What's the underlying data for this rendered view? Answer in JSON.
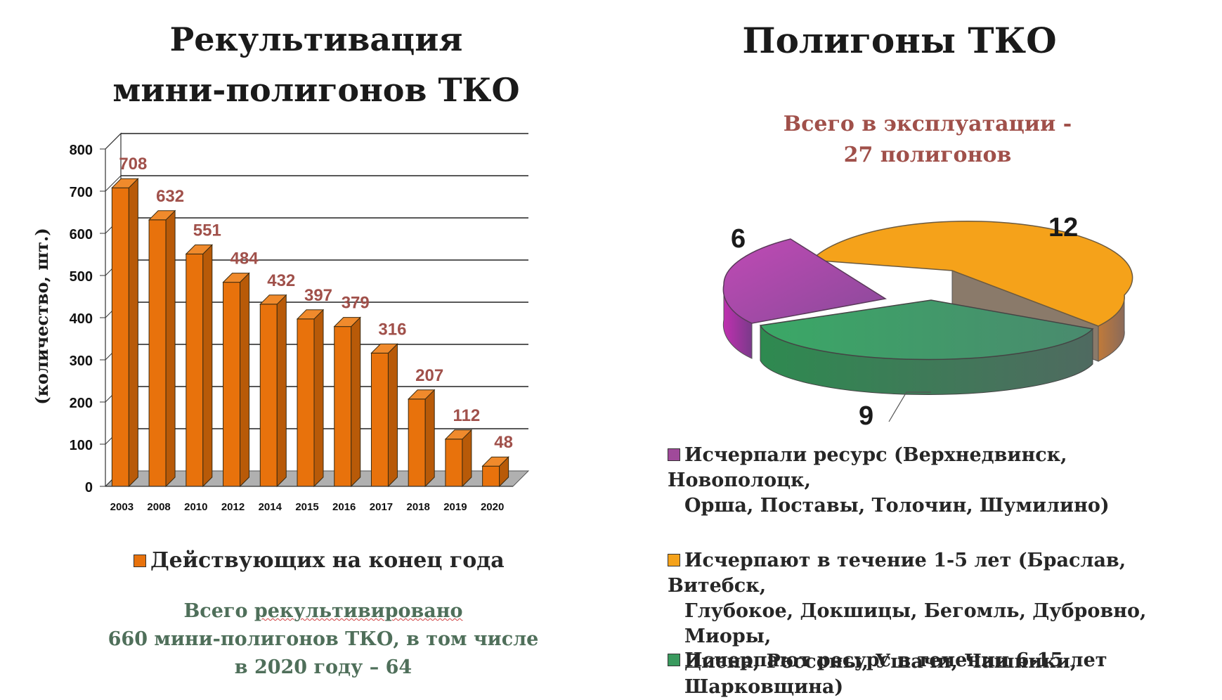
{
  "left": {
    "title_line1": "Рекультивация",
    "title_line2": "мини-полигонов ТКО",
    "legend_label": "Действующих на конец года",
    "summary_line1_pre": "Всего ",
    "summary_line1_u": "рекультивировано",
    "summary_line2": "660 мини-полигонов ТКО, в том числе",
    "summary_line3": "в 2020 году – 64"
  },
  "right": {
    "title": "Полигоны ТКО",
    "subtitle_line1": "Всего в эксплуатации -",
    "subtitle_line2": "27 полигонов",
    "legend": [
      {
        "line1": "Исчерпали ресурс (Верхнедвинск, Новополоцк,",
        "line2": "Орша, Поставы, Толочин, Шумилино)",
        "line3": ""
      },
      {
        "line1": "Исчерпают в течение  1-5 лет (Браслав, Витебск,",
        "line2": "Глубокое, Докшицы, Бегомль, Дубровно, Миоры,",
        "line3": "Дисна, Россоны, Ушачи, Чашники, Шарковщина)"
      },
      {
        "line1": "Исчерпают ресурс в течении 6-15 лет",
        "line2": "",
        "line3": ""
      }
    ]
  },
  "colors": {
    "bar": "#e8720c",
    "bar_side": "#b85a08",
    "bar_top": "#f08a2c",
    "label": "#a0504a",
    "pie_purple": "#a04a9a",
    "pie_orange": "#f5a21a",
    "pie_green": "#3a9a5e"
  },
  "chart_data": [
    {
      "type": "bar",
      "categories": [
        "2003",
        "2008",
        "2010",
        "2012",
        "2014",
        "2015",
        "2016",
        "2017",
        "2018",
        "2019",
        "2020"
      ],
      "values": [
        708,
        632,
        551,
        484,
        432,
        397,
        379,
        316,
        207,
        112,
        48
      ],
      "ylabel": "(количество, шт.)",
      "ylim": [
        0,
        800
      ],
      "yticks": [
        0,
        100,
        200,
        300,
        400,
        500,
        600,
        700,
        800
      ],
      "series": [
        {
          "name": "Действующих на конец года",
          "values": [
            708,
            632,
            551,
            484,
            432,
            397,
            379,
            316,
            207,
            112,
            48
          ]
        }
      ],
      "grid": true,
      "data_labels": true
    },
    {
      "type": "pie",
      "title": "Полигоны ТКО",
      "labels": [
        "Исчерпали ресурс",
        "Исчерпают в течение 1-5 лет",
        "Исчерпают ресурс в течении 6-15 лет"
      ],
      "values": [
        6,
        12,
        9
      ],
      "value_labels": [
        "6",
        "12",
        "9"
      ]
    }
  ]
}
